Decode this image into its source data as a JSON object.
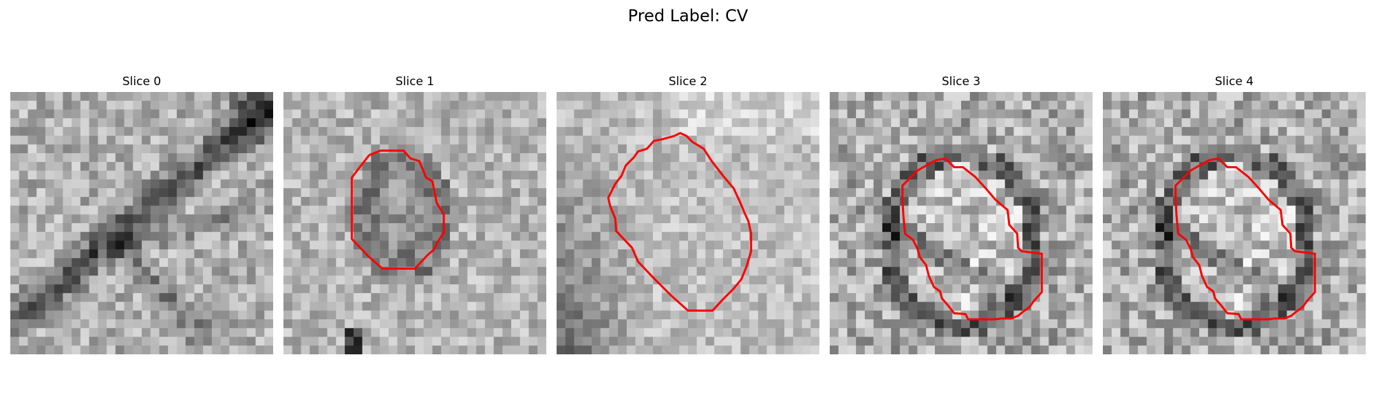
{
  "title": "Pred Label: CV",
  "slices": [
    {
      "label": "Slice 0",
      "has_contour": false
    },
    {
      "label": "Slice 1",
      "has_contour": true
    },
    {
      "label": "Slice 2",
      "has_contour": true
    },
    {
      "label": "Slice 3",
      "has_contour": true
    },
    {
      "label": "Slice 4",
      "has_contour": true
    }
  ],
  "contour_color": "#ff0000"
}
